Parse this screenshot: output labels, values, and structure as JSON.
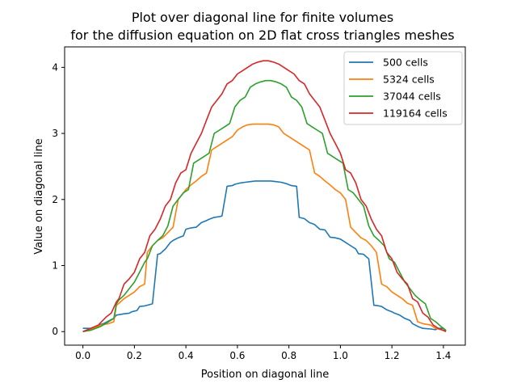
{
  "chart_data": {
    "type": "line",
    "title_line1": "Plot over diagonal line for finite volumes",
    "title_line2": "for the diffusion equation on 2D flat cross triangles meshes",
    "xlabel": "Position on diagonal line",
    "ylabel": "Value on diagonal line",
    "xlim": [
      -0.071,
      1.485
    ],
    "ylim": [
      -0.205,
      4.31
    ],
    "xticks": [
      0.0,
      0.2,
      0.4,
      0.6,
      0.8,
      1.0,
      1.2,
      1.4
    ],
    "xtick_labels": [
      "0.0",
      "0.2",
      "0.4",
      "0.6",
      "0.8",
      "1.0",
      "1.2",
      "1.4"
    ],
    "yticks": [
      0,
      1,
      2,
      3,
      4
    ],
    "ytick_labels": [
      "0",
      "1",
      "2",
      "3",
      "4"
    ],
    "grid": false,
    "legend_position": "upper-right",
    "series": [
      {
        "name": "500 cells",
        "color": "#1f77b4",
        "x": [
          0.0,
          0.05,
          0.06,
          0.08,
          0.12,
          0.13,
          0.16,
          0.18,
          0.19,
          0.21,
          0.22,
          0.24,
          0.25,
          0.27,
          0.29,
          0.3,
          0.32,
          0.34,
          0.35,
          0.37,
          0.39,
          0.4,
          0.42,
          0.44,
          0.46,
          0.48,
          0.49,
          0.51,
          0.53,
          0.54,
          0.56,
          0.58,
          0.59,
          0.61,
          0.63,
          0.65,
          0.67,
          0.69,
          0.71,
          0.73,
          0.75,
          0.77,
          0.79,
          0.81,
          0.83,
          0.84,
          0.86,
          0.88,
          0.9,
          0.92,
          0.94,
          0.96,
          0.98,
          1.0,
          1.02,
          1.04,
          1.06,
          1.07,
          1.09,
          1.11,
          1.13,
          1.15,
          1.16,
          1.18,
          1.2,
          1.21,
          1.23,
          1.25,
          1.27,
          1.28,
          1.3,
          1.32,
          1.35,
          1.37,
          1.38,
          1.4,
          1.41
        ],
        "y": [
          0.05,
          0.05,
          0.1,
          0.12,
          0.2,
          0.25,
          0.27,
          0.28,
          0.3,
          0.32,
          0.38,
          0.39,
          0.4,
          0.42,
          1.17,
          1.18,
          1.25,
          1.35,
          1.38,
          1.42,
          1.45,
          1.55,
          1.57,
          1.58,
          1.65,
          1.68,
          1.7,
          1.73,
          1.74,
          1.75,
          2.2,
          2.21,
          2.23,
          2.25,
          2.26,
          2.27,
          2.28,
          2.28,
          2.28,
          2.28,
          2.27,
          2.26,
          2.24,
          2.21,
          2.2,
          1.73,
          1.71,
          1.65,
          1.62,
          1.55,
          1.54,
          1.43,
          1.42,
          1.4,
          1.35,
          1.3,
          1.25,
          1.18,
          1.17,
          1.1,
          0.4,
          0.39,
          0.38,
          0.33,
          0.3,
          0.28,
          0.25,
          0.2,
          0.17,
          0.12,
          0.08,
          0.05,
          0.04,
          0.03,
          0.05,
          0.05,
          0.01
        ]
      },
      {
        "name": "5324 cells",
        "color": "#ff7f0e",
        "x": [
          0.0,
          0.03,
          0.07,
          0.1,
          0.12,
          0.13,
          0.14,
          0.16,
          0.18,
          0.2,
          0.22,
          0.24,
          0.25,
          0.27,
          0.29,
          0.31,
          0.33,
          0.35,
          0.37,
          0.39,
          0.4,
          0.42,
          0.44,
          0.46,
          0.48,
          0.5,
          0.52,
          0.54,
          0.56,
          0.58,
          0.6,
          0.62,
          0.64,
          0.66,
          0.68,
          0.7,
          0.72,
          0.74,
          0.76,
          0.78,
          0.8,
          0.82,
          0.84,
          0.86,
          0.88,
          0.9,
          0.92,
          0.94,
          0.96,
          0.98,
          1.0,
          1.02,
          1.04,
          1.06,
          1.08,
          1.1,
          1.12,
          1.14,
          1.16,
          1.18,
          1.2,
          1.22,
          1.24,
          1.26,
          1.28,
          1.3,
          1.32,
          1.35,
          1.37,
          1.39,
          1.41
        ],
        "y": [
          0.0,
          0.03,
          0.1,
          0.12,
          0.15,
          0.4,
          0.43,
          0.5,
          0.55,
          0.6,
          0.68,
          0.72,
          1.2,
          1.3,
          1.38,
          1.42,
          1.5,
          1.58,
          2.0,
          2.1,
          2.15,
          2.22,
          2.28,
          2.35,
          2.4,
          2.75,
          2.8,
          2.85,
          2.9,
          2.95,
          3.05,
          3.1,
          3.13,
          3.14,
          3.14,
          3.14,
          3.14,
          3.13,
          3.1,
          3.0,
          2.95,
          2.9,
          2.85,
          2.8,
          2.75,
          2.4,
          2.35,
          2.28,
          2.22,
          2.15,
          2.1,
          2.0,
          1.58,
          1.5,
          1.42,
          1.38,
          1.3,
          1.2,
          0.72,
          0.68,
          0.6,
          0.55,
          0.5,
          0.43,
          0.4,
          0.15,
          0.12,
          0.1,
          0.05,
          0.03,
          0.0
        ]
      },
      {
        "name": "37044 cells",
        "color": "#2ca02c",
        "x": [
          0.0,
          0.03,
          0.07,
          0.1,
          0.12,
          0.13,
          0.14,
          0.16,
          0.18,
          0.2,
          0.22,
          0.24,
          0.25,
          0.27,
          0.29,
          0.31,
          0.33,
          0.35,
          0.37,
          0.39,
          0.41,
          0.43,
          0.45,
          0.47,
          0.49,
          0.51,
          0.53,
          0.55,
          0.57,
          0.59,
          0.61,
          0.63,
          0.65,
          0.67,
          0.69,
          0.71,
          0.73,
          0.75,
          0.77,
          0.79,
          0.81,
          0.83,
          0.85,
          0.87,
          0.89,
          0.91,
          0.93,
          0.95,
          0.97,
          0.99,
          1.01,
          1.03,
          1.05,
          1.07,
          1.09,
          1.11,
          1.13,
          1.15,
          1.17,
          1.19,
          1.21,
          1.23,
          1.25,
          1.27,
          1.29,
          1.31,
          1.33,
          1.35,
          1.37,
          1.39,
          1.41
        ],
        "y": [
          0.0,
          0.02,
          0.08,
          0.15,
          0.2,
          0.42,
          0.48,
          0.55,
          0.65,
          0.75,
          0.9,
          1.05,
          1.1,
          1.3,
          1.38,
          1.45,
          1.6,
          1.9,
          2.0,
          2.1,
          2.15,
          2.55,
          2.6,
          2.65,
          2.7,
          3.0,
          3.05,
          3.1,
          3.15,
          3.4,
          3.5,
          3.55,
          3.7,
          3.75,
          3.78,
          3.8,
          3.8,
          3.78,
          3.75,
          3.7,
          3.55,
          3.5,
          3.4,
          3.15,
          3.1,
          3.05,
          3.0,
          2.7,
          2.65,
          2.6,
          2.55,
          2.15,
          2.1,
          2.0,
          1.9,
          1.6,
          1.45,
          1.38,
          1.3,
          1.1,
          1.05,
          0.9,
          0.75,
          0.65,
          0.55,
          0.48,
          0.42,
          0.2,
          0.15,
          0.08,
          0.02
        ]
      },
      {
        "name": "119164 cells",
        "color": "#d62728",
        "x": [
          0.0,
          0.03,
          0.06,
          0.09,
          0.11,
          0.13,
          0.14,
          0.16,
          0.18,
          0.2,
          0.22,
          0.24,
          0.26,
          0.28,
          0.3,
          0.32,
          0.34,
          0.36,
          0.38,
          0.4,
          0.42,
          0.44,
          0.46,
          0.48,
          0.5,
          0.52,
          0.54,
          0.56,
          0.58,
          0.6,
          0.62,
          0.64,
          0.66,
          0.68,
          0.7,
          0.72,
          0.74,
          0.76,
          0.78,
          0.8,
          0.82,
          0.84,
          0.86,
          0.88,
          0.9,
          0.92,
          0.94,
          0.96,
          0.98,
          1.0,
          1.02,
          1.04,
          1.06,
          1.08,
          1.1,
          1.12,
          1.14,
          1.16,
          1.18,
          1.2,
          1.22,
          1.24,
          1.26,
          1.28,
          1.3,
          1.32,
          1.34,
          1.36,
          1.38,
          1.4,
          1.41
        ],
        "y": [
          0.0,
          0.05,
          0.1,
          0.22,
          0.28,
          0.45,
          0.5,
          0.72,
          0.8,
          0.9,
          1.1,
          1.2,
          1.45,
          1.55,
          1.7,
          1.9,
          2.0,
          2.25,
          2.4,
          2.45,
          2.7,
          2.85,
          3.0,
          3.2,
          3.4,
          3.5,
          3.6,
          3.75,
          3.8,
          3.9,
          3.95,
          4.0,
          4.05,
          4.08,
          4.1,
          4.1,
          4.08,
          4.05,
          4.0,
          3.95,
          3.9,
          3.8,
          3.75,
          3.6,
          3.5,
          3.4,
          3.2,
          3.0,
          2.85,
          2.7,
          2.45,
          2.4,
          2.25,
          2.0,
          1.9,
          1.7,
          1.55,
          1.45,
          1.2,
          1.1,
          0.9,
          0.8,
          0.72,
          0.5,
          0.45,
          0.28,
          0.22,
          0.1,
          0.05,
          0.02,
          0.0
        ]
      }
    ]
  }
}
